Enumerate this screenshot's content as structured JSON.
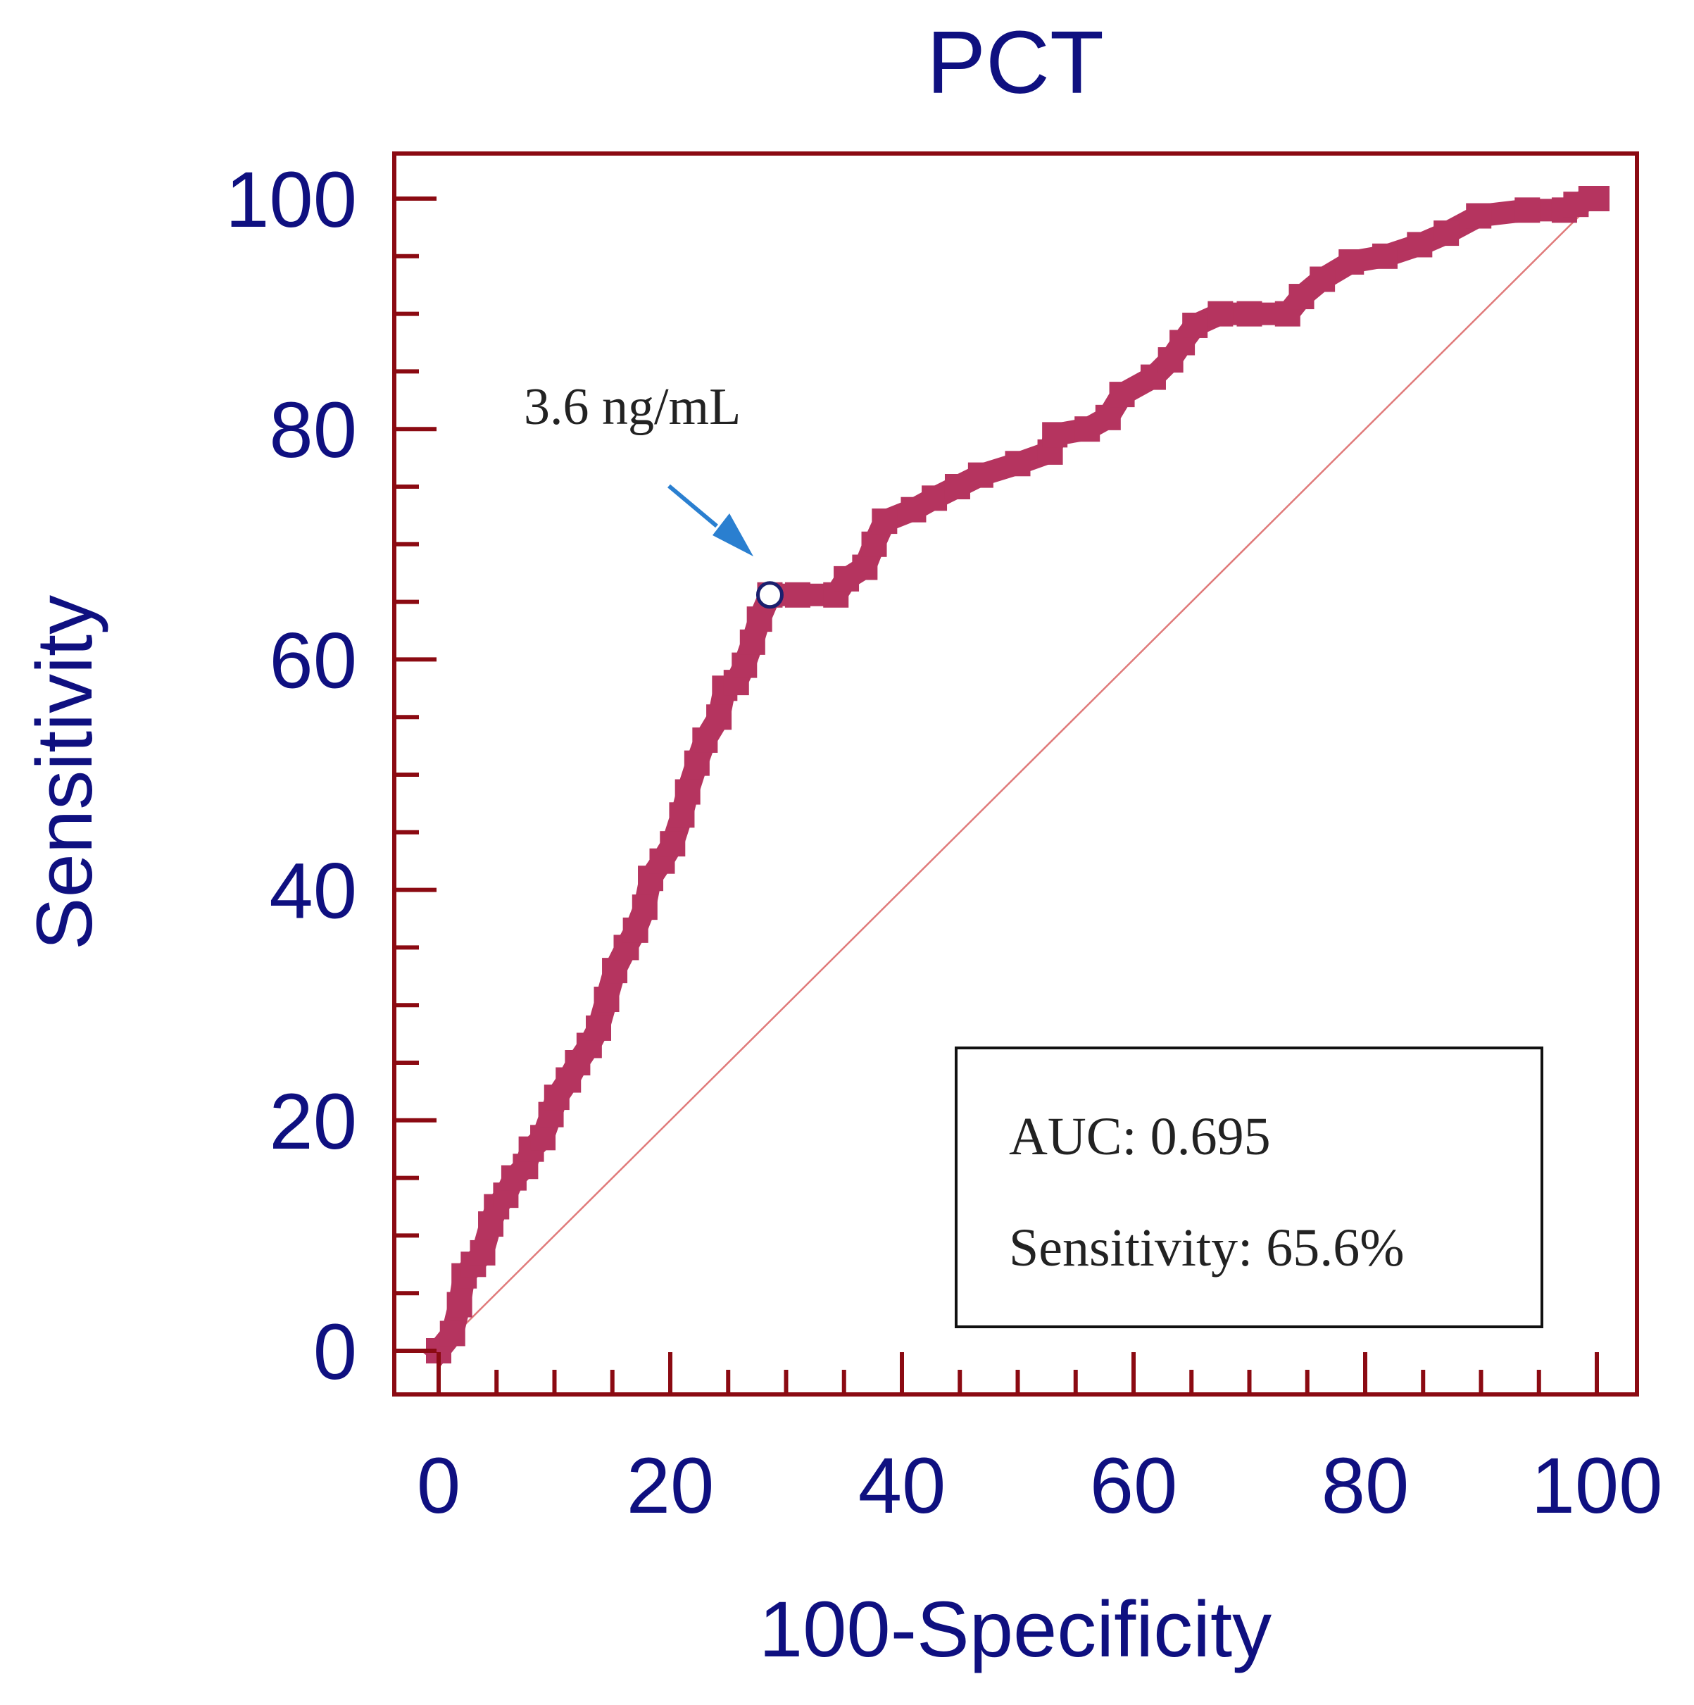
{
  "colors": {
    "text": "#0f1080",
    "frame": "#8b0a12",
    "curve": "#b5345f",
    "diagonal": "#e07a7a",
    "arrow": "#2a7fd0",
    "annotation": "#222222"
  },
  "chart_data": {
    "type": "line",
    "title": "PCT",
    "xlabel": "100-Specificity",
    "ylabel": "Sensitivity",
    "xlim": [
      0,
      100
    ],
    "ylim": [
      0,
      100
    ],
    "xticks": [
      0,
      20,
      40,
      60,
      80,
      100
    ],
    "yticks": [
      0,
      20,
      40,
      60,
      80,
      100
    ],
    "x_tick_labels": [
      "0",
      "20",
      "40",
      "60",
      "80",
      "100"
    ],
    "y_tick_labels": [
      "0",
      "20",
      "40",
      "60",
      "80",
      "100"
    ],
    "series": [
      {
        "name": "ROC curve",
        "points": [
          [
            0,
            0
          ],
          [
            1.2,
            1.5
          ],
          [
            1.8,
            4
          ],
          [
            2.2,
            6.5
          ],
          [
            3,
            7.5
          ],
          [
            3.8,
            8.5
          ],
          [
            4.5,
            11
          ],
          [
            5,
            12.5
          ],
          [
            5.8,
            13.5
          ],
          [
            6.5,
            15
          ],
          [
            7.5,
            16
          ],
          [
            8,
            17.5
          ],
          [
            9,
            18.5
          ],
          [
            9.7,
            20.5
          ],
          [
            10.2,
            22
          ],
          [
            11.2,
            23.5
          ],
          [
            12,
            25
          ],
          [
            13,
            26.5
          ],
          [
            13.8,
            28
          ],
          [
            14.5,
            30.5
          ],
          [
            15.2,
            33
          ],
          [
            16.2,
            35
          ],
          [
            17,
            36.5
          ],
          [
            17.8,
            38.5
          ],
          [
            18.3,
            41
          ],
          [
            19.3,
            42.5
          ],
          [
            20.2,
            44
          ],
          [
            21,
            46.5
          ],
          [
            21.5,
            48.5
          ],
          [
            22.3,
            51
          ],
          [
            23,
            53
          ],
          [
            24.2,
            55
          ],
          [
            24.7,
            57.5
          ],
          [
            25.7,
            58
          ],
          [
            26.4,
            59.5
          ],
          [
            27.1,
            61.5
          ],
          [
            27.7,
            63.5
          ],
          [
            28.6,
            65.6
          ],
          [
            31,
            65.6
          ],
          [
            34.3,
            65.6
          ],
          [
            35.2,
            67
          ],
          [
            36.8,
            68
          ],
          [
            37.6,
            70
          ],
          [
            38.5,
            72
          ],
          [
            41,
            73
          ],
          [
            42.8,
            74
          ],
          [
            44.8,
            75
          ],
          [
            46.8,
            76
          ],
          [
            50,
            77
          ],
          [
            52.8,
            78
          ],
          [
            53.2,
            79.5
          ],
          [
            56,
            80
          ],
          [
            57.8,
            81
          ],
          [
            59,
            83
          ],
          [
            61.7,
            84.5
          ],
          [
            63.2,
            86
          ],
          [
            64.2,
            87.5
          ],
          [
            65.3,
            89
          ],
          [
            67.5,
            90
          ],
          [
            70,
            90
          ],
          [
            73.3,
            90
          ],
          [
            74.5,
            91.5
          ],
          [
            76.3,
            93
          ],
          [
            78.8,
            94.5
          ],
          [
            81.7,
            95
          ],
          [
            84.7,
            96
          ],
          [
            87,
            97
          ],
          [
            89.8,
            98.5
          ],
          [
            94,
            99
          ],
          [
            97.2,
            99
          ],
          [
            98.2,
            99.5
          ],
          [
            99.5,
            100
          ],
          [
            100,
            100
          ]
        ]
      },
      {
        "name": "Reference line",
        "points": [
          [
            0,
            0
          ],
          [
            100,
            100
          ]
        ]
      }
    ],
    "cutoff": {
      "x": 28.6,
      "y": 65.6,
      "label": "3.6 ng/mL"
    },
    "stats_box": {
      "auc_text": "AUC: 0.695",
      "sensitivity_text": "Sensitivity: 65.6%"
    },
    "grid": false,
    "legend": "none"
  }
}
